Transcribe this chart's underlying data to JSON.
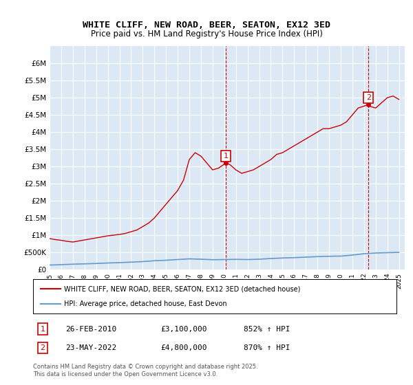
{
  "title": "WHITE CLIFF, NEW ROAD, BEER, SEATON, EX12 3ED",
  "subtitle": "Price paid vs. HM Land Registry's House Price Index (HPI)",
  "legend_line1": "WHITE CLIFF, NEW ROAD, BEER, SEATON, EX12 3ED (detached house)",
  "legend_line2": "HPI: Average price, detached house, East Devon",
  "annotation1_label": "1",
  "annotation1_date": "26-FEB-2010",
  "annotation1_price": "£3,100,000",
  "annotation1_hpi": "852% ↑ HPI",
  "annotation2_label": "2",
  "annotation2_date": "23-MAY-2022",
  "annotation2_price": "£4,800,000",
  "annotation2_hpi": "870% ↑ HPI",
  "footnote": "Contains HM Land Registry data © Crown copyright and database right 2025.\nThis data is licensed under the Open Government Licence v3.0.",
  "background_color": "#ffffff",
  "plot_bg_color": "#dce9f5",
  "grid_color": "#ffffff",
  "red_line_color": "#cc0000",
  "blue_line_color": "#6699cc",
  "vline_color": "#cc0000",
  "marker_box_color": "#cc0000",
  "ylim": [
    0,
    6500000
  ],
  "xlim_start": 1995.0,
  "xlim_end": 2025.5,
  "yticks": [
    0,
    500000,
    1000000,
    1500000,
    2000000,
    2500000,
    3000000,
    3500000,
    4000000,
    4500000,
    5000000,
    5500000,
    6000000
  ],
  "ytick_labels": [
    "£0",
    "£500K",
    "£1M",
    "£1.5M",
    "£2M",
    "£2.5M",
    "£3M",
    "£3.5M",
    "£4M",
    "£4.5M",
    "£5M",
    "£5.5M",
    "£6M"
  ],
  "xticks": [
    1995,
    1996,
    1997,
    1998,
    1999,
    2000,
    2001,
    2002,
    2003,
    2004,
    2005,
    2006,
    2007,
    2008,
    2009,
    2010,
    2011,
    2012,
    2013,
    2014,
    2015,
    2016,
    2017,
    2018,
    2019,
    2020,
    2021,
    2022,
    2023,
    2024,
    2025
  ],
  "point1_x": 2010.15,
  "point1_y": 3100000,
  "point2_x": 2022.39,
  "point2_y": 4800000,
  "red_x": [
    1995.0,
    1995.5,
    1996.0,
    1996.5,
    1997.0,
    1997.5,
    1998.0,
    1998.5,
    1999.0,
    1999.5,
    2000.0,
    2000.5,
    2001.0,
    2001.5,
    2002.0,
    2002.5,
    2003.0,
    2003.5,
    2004.0,
    2004.5,
    2005.0,
    2005.5,
    2006.0,
    2006.5,
    2007.0,
    2007.5,
    2008.0,
    2008.5,
    2009.0,
    2009.5,
    2010.15,
    2010.5,
    2011.0,
    2011.5,
    2012.0,
    2012.5,
    2013.0,
    2013.5,
    2014.0,
    2014.5,
    2015.0,
    2015.5,
    2016.0,
    2016.5,
    2017.0,
    2017.5,
    2018.0,
    2018.5,
    2019.0,
    2019.5,
    2020.0,
    2020.5,
    2021.0,
    2021.5,
    2022.39,
    2022.5,
    2023.0,
    2023.5,
    2024.0,
    2024.5,
    2025.0
  ],
  "red_y": [
    900000,
    870000,
    850000,
    820000,
    800000,
    830000,
    860000,
    890000,
    920000,
    950000,
    980000,
    1000000,
    1020000,
    1050000,
    1100000,
    1150000,
    1250000,
    1350000,
    1500000,
    1700000,
    1900000,
    2100000,
    2300000,
    2600000,
    3200000,
    3400000,
    3300000,
    3100000,
    2900000,
    2950000,
    3100000,
    3050000,
    2900000,
    2800000,
    2850000,
    2900000,
    3000000,
    3100000,
    3200000,
    3350000,
    3400000,
    3500000,
    3600000,
    3700000,
    3800000,
    3900000,
    4000000,
    4100000,
    4100000,
    4150000,
    4200000,
    4300000,
    4500000,
    4700000,
    4800000,
    4750000,
    4700000,
    4850000,
    5000000,
    5050000,
    4950000
  ],
  "blue_x": [
    1995.0,
    1996.0,
    1997.0,
    1998.0,
    1999.0,
    2000.0,
    2001.0,
    2002.0,
    2003.0,
    2004.0,
    2005.0,
    2006.0,
    2007.0,
    2008.0,
    2009.0,
    2010.0,
    2011.0,
    2012.0,
    2013.0,
    2014.0,
    2015.0,
    2016.0,
    2017.0,
    2018.0,
    2019.0,
    2020.0,
    2021.0,
    2022.0,
    2023.0,
    2024.0,
    2025.0
  ],
  "blue_y": [
    130000,
    140000,
    155000,
    165000,
    175000,
    190000,
    200000,
    215000,
    230000,
    255000,
    270000,
    290000,
    310000,
    300000,
    285000,
    290000,
    295000,
    290000,
    300000,
    320000,
    335000,
    345000,
    360000,
    375000,
    385000,
    390000,
    420000,
    460000,
    480000,
    490000,
    500000
  ]
}
